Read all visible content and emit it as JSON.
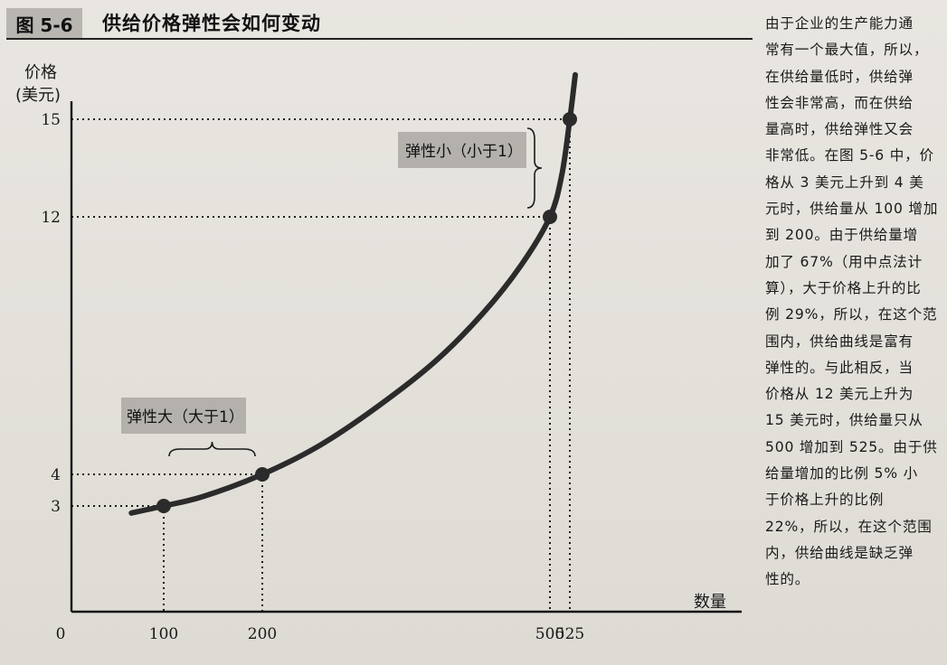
{
  "figure": {
    "number": "图 5-6",
    "title": "供给价格弹性会如何变动"
  },
  "side_text": "由于企业的生产能力通\n常有一个最大值，所以，\n在供给量低时，供给弹\n性会非常高，而在供给\n量高时，供给弹性又会\n非常低。在图 5-6 中，价\n格从 3 美元上升到 4 美\n元时，供给量从 100 增加\n到 200。由于供给量增\n加了 67%（用中点法计\n算），大于价格上升的比\n例 29%，所以，在这个范\n围内，供给曲线是富有\n弹性的。与此相反，当\n价格从 12 美元上升为\n15 美元时，供给量只从\n500 增加到 525。由于供\n给量增加的比例 5% 小\n于价格上升的比例\n22%，所以，在这个范围\n内，供给曲线是缺乏弹\n性的。",
  "colors": {
    "curve": "#2b2b2b",
    "axis": "#111111",
    "annotation_box": "#b4b1ad",
    "figure_badge": "#b9b6b2"
  },
  "chart_data": {
    "type": "line",
    "title": "供给价格弹性会如何变动",
    "xlabel": "数量",
    "ylabel_line1": "价格",
    "ylabel_line2": "(美元)",
    "origin_label": "0",
    "x_ticks": [
      100,
      200,
      500,
      525
    ],
    "y_ticks": [
      3,
      4,
      12,
      15
    ],
    "grid": false,
    "series": [
      {
        "points": [
          {
            "x": 65,
            "y": 2.8
          },
          {
            "x": 100,
            "y": 3
          },
          {
            "x": 140,
            "y": 3.3
          },
          {
            "x": 200,
            "y": 4
          },
          {
            "x": 260,
            "y": 4.9
          },
          {
            "x": 320,
            "y": 6.1
          },
          {
            "x": 380,
            "y": 7.5
          },
          {
            "x": 430,
            "y": 9.0
          },
          {
            "x": 470,
            "y": 10.5
          },
          {
            "x": 500,
            "y": 12
          },
          {
            "x": 515,
            "y": 13.3
          },
          {
            "x": 525,
            "y": 15
          },
          {
            "x": 532,
            "y": 16.8
          }
        ]
      }
    ],
    "marked_points": [
      {
        "x": 100,
        "y": 3
      },
      {
        "x": 200,
        "y": 4
      },
      {
        "x": 500,
        "y": 12
      },
      {
        "x": 525,
        "y": 15
      }
    ],
    "annotations": [
      {
        "text": "弹性大（大于1）"
      },
      {
        "text": "弹性小（小于1）"
      }
    ]
  }
}
